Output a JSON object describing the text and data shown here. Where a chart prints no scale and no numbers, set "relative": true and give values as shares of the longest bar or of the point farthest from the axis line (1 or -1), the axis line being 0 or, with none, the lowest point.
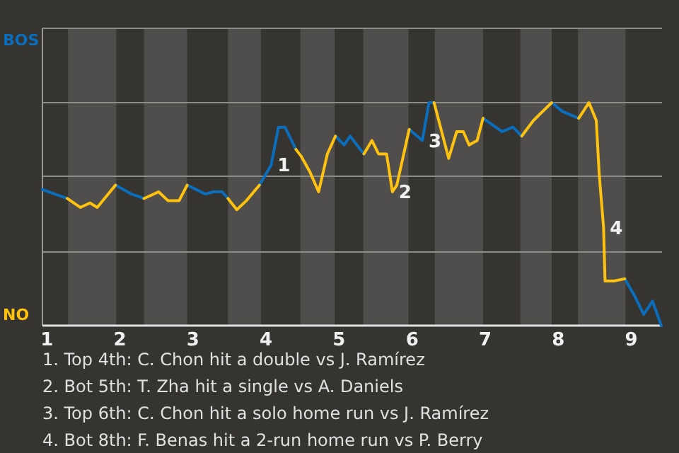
{
  "chart_data": {
    "type": "line",
    "relative": true,
    "x": [
      0.94,
      1.28,
      1.46,
      1.59,
      1.69,
      1.94,
      2.16,
      2.33,
      2.53,
      2.66,
      2.81,
      2.92,
      3.17,
      3.28,
      3.4,
      3.48,
      3.6,
      3.73,
      3.91,
      4.07,
      4.17,
      4.26,
      4.41,
      4.48,
      4.6,
      4.72,
      4.84,
      4.95,
      5.07,
      5.15,
      5.34,
      5.45,
      5.54,
      5.65,
      5.73,
      5.79,
      5.96,
      6.14,
      6.23,
      6.3,
      6.5,
      6.61,
      6.7,
      6.78,
      6.89,
      6.97,
      7.23,
      7.38,
      7.5,
      7.66,
      7.91,
      8.06,
      8.28,
      8.42,
      8.52,
      8.56,
      8.62,
      8.64,
      8.76,
      8.91,
      9.05,
      9.17,
      9.29,
      9.41
    ],
    "series": [
      {
        "color": "#0a6ebd",
        "values": [
          0.61,
          0.57,
          null,
          null,
          null,
          0.63,
          0.59,
          0.57,
          null,
          null,
          null,
          0.63,
          0.59,
          0.6,
          0.6,
          0.57,
          null,
          null,
          0.63,
          0.72,
          0.89,
          0.89,
          0.79,
          null,
          null,
          null,
          null,
          0.85,
          0.81,
          0.85,
          0.77,
          null,
          null,
          null,
          null,
          null,
          0.88,
          0.83,
          1,
          1,
          null,
          null,
          null,
          null,
          null,
          0.93,
          0.87,
          0.89,
          0.85,
          0.92,
          1,
          0.96,
          0.93,
          null,
          null,
          null,
          null,
          null,
          null,
          0.21,
          0.13,
          0.05,
          0.11,
          0
        ]
      },
      {
        "color": "#ffc20e",
        "values": [
          null,
          0.57,
          0.53,
          0.55,
          0.53,
          0.63,
          null,
          0.57,
          0.6,
          0.56,
          0.56,
          0.63,
          null,
          null,
          null,
          0.57,
          0.52,
          0.56,
          0.63,
          null,
          null,
          null,
          0.79,
          0.76,
          0.69,
          0.6,
          0.77,
          0.85,
          null,
          null,
          0.77,
          0.83,
          0.77,
          0.77,
          0.6,
          0.63,
          0.88,
          null,
          null,
          1,
          0.75,
          0.87,
          0.87,
          0.81,
          0.83,
          0.93,
          null,
          null,
          0.85,
          0.92,
          1,
          null,
          0.93,
          1,
          0.92,
          0.68,
          0.44,
          0.2,
          0.2,
          0.21,
          null,
          null,
          null,
          null
        ]
      }
    ],
    "xlim": [
      0.94,
      9.42
    ],
    "xticks": [
      1,
      2,
      3,
      4,
      5,
      6,
      7,
      8,
      9
    ],
    "ref_lines": [
      {
        "axis": "y",
        "value": 0.33,
        "color": "#8e8c88"
      },
      {
        "axis": "y",
        "value": 0.67,
        "color": "#8e8c88"
      },
      {
        "axis": "y",
        "value": 1,
        "color": "#8e8c88"
      }
    ],
    "marker": "none",
    "line_style": "solid",
    "bands": [
      {
        "axis": "x",
        "from": 1.29,
        "to": 1.95,
        "color": "#504e4c"
      },
      {
        "axis": "x",
        "from": 2.33,
        "to": 2.92,
        "color": "#504e4c"
      },
      {
        "axis": "x",
        "from": 3.48,
        "to": 3.93,
        "color": "#504e4c"
      },
      {
        "axis": "x",
        "from": 4.47,
        "to": 4.94,
        "color": "#504e4c"
      },
      {
        "axis": "x",
        "from": 5.33,
        "to": 5.95,
        "color": "#504e4c"
      },
      {
        "axis": "x",
        "from": 6.31,
        "to": 6.97,
        "color": "#504e4c"
      },
      {
        "axis": "x",
        "from": 7.48,
        "to": 7.91,
        "color": "#504e4c"
      },
      {
        "axis": "x",
        "from": 8.27,
        "to": 8.92,
        "color": "#504e4c"
      }
    ],
    "annotations": [
      "BOS",
      "NO",
      {
        "text": "1",
        "x": 4.07,
        "y": 0.72
      },
      {
        "text": "2",
        "x": 5.73,
        "y": 0.6
      },
      {
        "text": "3",
        "x": 6.14,
        "y": 0.83
      },
      {
        "text": "4",
        "x": 8.62,
        "y": 0.44
      },
      "1. Top 4th: C. Chon hit a double vs J. Ramírez",
      "2. Bot 5th: T. Zha hit a single vs A. Daniels",
      "3. Top 6th: C. Chon hit a solo home run vs J. Ramírez",
      "4. Bot 8th: F. Benas hit a 2-run home run vs P. Berry"
    ]
  }
}
